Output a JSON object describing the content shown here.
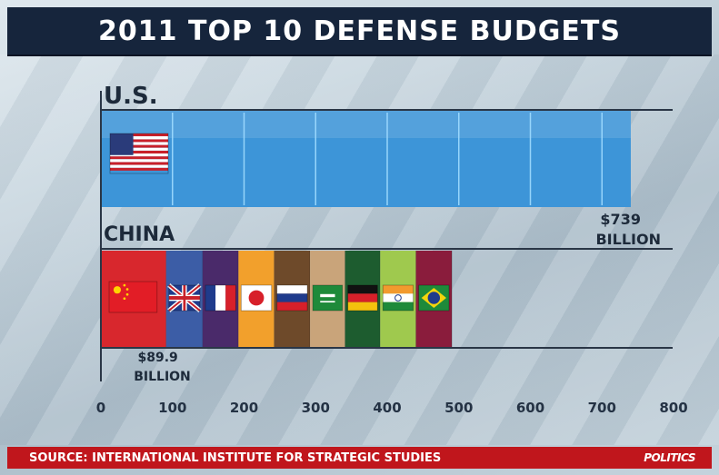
{
  "title": "2011 TOP 10 DEFENSE BUDGETS",
  "source": "SOURCE: INTERNATIONAL INSTITUTE FOR STRATEGIC STUDIES",
  "logo": "POLITICS",
  "chart_data": {
    "type": "bar",
    "orientation": "horizontal",
    "grid": false,
    "xlim": [
      0,
      800
    ],
    "ticks": [
      0,
      100,
      200,
      300,
      400,
      500,
      600,
      700,
      800
    ],
    "bars": [
      {
        "label": "U.S.",
        "value": 739,
        "value_label": [
          "$739",
          "BILLION"
        ],
        "color": "#3d95d8",
        "flag": "us-flag"
      },
      {
        "label": "CHINA",
        "value": 89.9,
        "value_label": [
          "$89.9",
          "BILLION"
        ],
        "color": "#d8272d",
        "flag": "china-flag",
        "stacked_note": "bar continues with 8 more country segments from other top-10 spenders",
        "segments": [
          {
            "flag": "china-flag",
            "value": 89.9,
            "color": "#d8272d"
          },
          {
            "flag": "uk-flag",
            "value": 51,
            "color": "#3c5da6"
          },
          {
            "flag": "france-flag",
            "value": 50,
            "color": "#4a2a6a"
          },
          {
            "flag": "japan-flag",
            "value": 50,
            "color": "#f2a02c"
          },
          {
            "flag": "russia-flag",
            "value": 50,
            "color": "#6e4a2a"
          },
          {
            "flag": "saudi-flag",
            "value": 49,
            "color": "#c9a47a"
          },
          {
            "flag": "germany-flag",
            "value": 49,
            "color": "#1d5c2f"
          },
          {
            "flag": "india-flag",
            "value": 50,
            "color": "#9fc94e"
          },
          {
            "flag": "brazil-flag",
            "value": 50,
            "color": "#8a1c3c"
          }
        ]
      }
    ]
  }
}
